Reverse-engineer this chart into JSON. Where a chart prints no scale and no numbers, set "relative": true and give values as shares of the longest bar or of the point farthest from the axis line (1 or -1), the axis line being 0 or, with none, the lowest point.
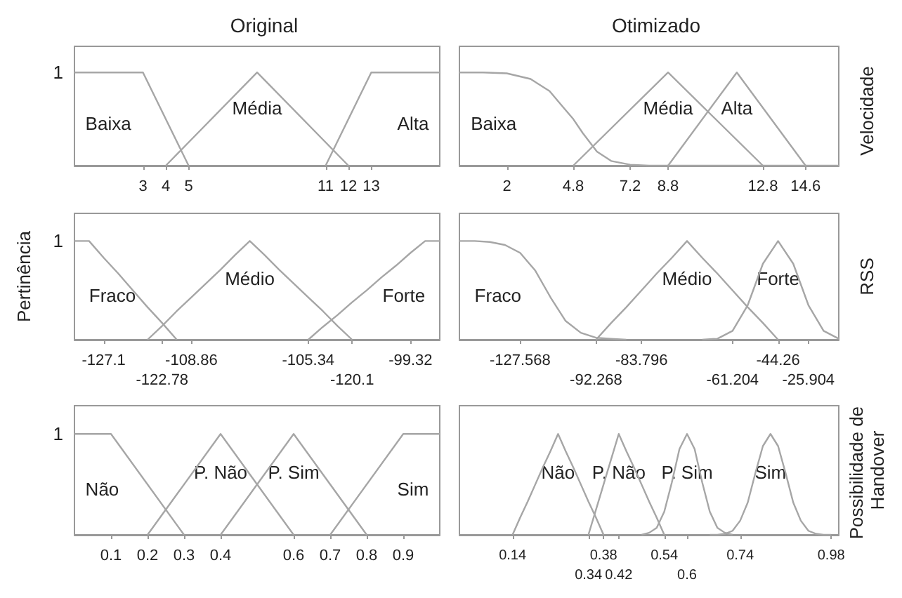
{
  "chart_data": [
    {
      "type": "line",
      "title": "Original",
      "relative": true,
      "annotations": [
        "1"
      ],
      "xlim": [
        0,
        16
      ],
      "xticks": [
        3,
        4,
        5,
        11,
        12,
        13
      ],
      "series": [
        {
          "name": "Baixa",
          "color": "#a6a6a6",
          "x": [
            0,
            3,
            5
          ],
          "values": [
            1,
            1,
            0
          ]
        },
        {
          "name": "Média",
          "color": "#a6a6a6",
          "x": [
            4,
            8,
            12
          ],
          "values": [
            0,
            1,
            0
          ]
        },
        {
          "name": "Alta",
          "color": "#a6a6a6",
          "x": [
            11,
            13,
            16
          ],
          "values": [
            0,
            1,
            1
          ]
        }
      ]
    },
    {
      "type": "line",
      "title": "Otimizado",
      "y2label": "Velocidade",
      "relative": true,
      "xlim": [
        0,
        16
      ],
      "xticks": [
        2,
        4.8,
        7.2,
        8.8,
        12.8,
        14.6
      ],
      "series": [
        {
          "name": "Baixa",
          "color": "#a6a6a6",
          "x": [
            0,
            1,
            2,
            3,
            3.8,
            4.4,
            4.8,
            5.2,
            5.8,
            6.4,
            7.2,
            8,
            16
          ],
          "values": [
            1,
            1,
            0.99,
            0.93,
            0.8,
            0.62,
            0.5,
            0.35,
            0.15,
            0.05,
            0.01,
            0,
            0
          ]
        },
        {
          "name": "Média",
          "color": "#a6a6a6",
          "x": [
            4.8,
            8.8,
            12.8
          ],
          "values": [
            0,
            1,
            0
          ]
        },
        {
          "name": "Alta",
          "color": "#a6a6a6",
          "x": [
            8.8,
            11.7,
            14.6
          ],
          "values": [
            0,
            1,
            0
          ]
        }
      ]
    },
    {
      "type": "line",
      "ylabel": "Pertinência",
      "relative": true,
      "annotations": [
        "1"
      ],
      "categories": [
        null,
        null,
        "-127.1",
        null,
        null,
        null,
        "-122.78",
        null,
        "-108.86",
        null,
        null,
        null,
        null,
        null,
        null,
        null,
        "-105.34",
        null,
        null,
        "-120.1",
        null,
        null,
        null,
        "-99.32",
        null,
        null
      ],
      "series": [
        {
          "name": "Fraco",
          "color": "#a6a6a6",
          "values": [
            1,
            1,
            0.83,
            0.67,
            0.5,
            0.33,
            0.17,
            0,
            null,
            null,
            null,
            null,
            null,
            null,
            null,
            null,
            null,
            null,
            null,
            null,
            null,
            null,
            null,
            null,
            null,
            null
          ]
        },
        {
          "name": "Médio",
          "color": "#a6a6a6",
          "values": [
            null,
            null,
            null,
            null,
            null,
            0,
            0.14,
            0.29,
            0.43,
            0.57,
            0.71,
            0.86,
            1,
            0.86,
            0.71,
            0.57,
            0.43,
            0.29,
            0.14,
            0,
            null,
            null,
            null,
            null,
            null,
            null
          ]
        },
        {
          "name": "Forte",
          "color": "#a6a6a6",
          "values": [
            null,
            null,
            null,
            null,
            null,
            null,
            null,
            null,
            null,
            null,
            null,
            null,
            null,
            null,
            null,
            null,
            0,
            0.13,
            0.25,
            0.38,
            0.5,
            0.63,
            0.75,
            0.88,
            1,
            1
          ]
        }
      ]
    },
    {
      "type": "line",
      "y2label": "RSS",
      "relative": true,
      "categories": [
        null,
        null,
        null,
        null,
        "-127.568",
        null,
        null,
        null,
        null,
        "-92.268",
        null,
        null,
        "-83.796",
        null,
        null,
        null,
        null,
        null,
        "-61.204",
        null,
        null,
        "-44.26",
        null,
        "-25.904",
        null,
        null
      ],
      "series": [
        {
          "name": "Fraco",
          "color": "#a6a6a6",
          "values": [
            1,
            1,
            0.99,
            0.96,
            0.88,
            0.7,
            0.43,
            0.19,
            0.07,
            0.02,
            0.01,
            0,
            null,
            null,
            null,
            null,
            null,
            null,
            null,
            null,
            null,
            null,
            null,
            null,
            null,
            null
          ]
        },
        {
          "name": "Médio",
          "color": "#a6a6a6",
          "values": [
            null,
            null,
            null,
            null,
            null,
            null,
            null,
            null,
            null,
            0,
            0.17,
            0.33,
            0.5,
            0.67,
            0.83,
            1,
            0.83,
            0.67,
            0.5,
            0.33,
            0.17,
            0,
            null,
            null,
            null,
            null
          ]
        },
        {
          "name": "Forte",
          "color": "#a6a6a6",
          "values": [
            null,
            null,
            null,
            null,
            null,
            null,
            null,
            null,
            null,
            null,
            null,
            null,
            null,
            null,
            null,
            null,
            0,
            0.01,
            0.09,
            0.35,
            0.77,
            1,
            0.77,
            0.35,
            0.09,
            0.01
          ]
        }
      ]
    },
    {
      "type": "line",
      "relative": true,
      "annotations": [
        "1"
      ],
      "xlim": [
        0,
        1
      ],
      "xticks": [
        0.1,
        0.2,
        0.3,
        0.4,
        0.6,
        0.7,
        0.8,
        0.9
      ],
      "series": [
        {
          "name": "Não",
          "color": "#a6a6a6",
          "x": [
            0,
            0.1,
            0.3
          ],
          "values": [
            1,
            1,
            0
          ]
        },
        {
          "name": "P. Não",
          "color": "#a6a6a6",
          "x": [
            0.2,
            0.4,
            0.6
          ],
          "values": [
            0,
            1,
            0
          ]
        },
        {
          "name": "P. Sim",
          "color": "#a6a6a6",
          "x": [
            0.4,
            0.6,
            0.8
          ],
          "values": [
            0,
            1,
            0
          ]
        },
        {
          "name": "Sim",
          "color": "#a6a6a6",
          "x": [
            0.7,
            0.9,
            1
          ],
          "values": [
            0,
            1,
            1
          ]
        }
      ]
    },
    {
      "type": "line",
      "y2label": "Possibilidade de Handover",
      "relative": true,
      "categories": [
        null,
        null,
        null,
        null,
        null,
        null,
        null,
        "0.14",
        null,
        null,
        null,
        null,
        null,
        null,
        null,
        null,
        null,
        "0.34",
        null,
        "0.38",
        null,
        "0.42",
        null,
        null,
        null,
        null,
        null,
        "0.54",
        null,
        null,
        "0.6",
        null,
        null,
        null,
        null,
        null,
        null,
        "0.74",
        null,
        null,
        null,
        null,
        null,
        null,
        null,
        null,
        null,
        null,
        null,
        "0.98",
        null
      ],
      "series": [
        {
          "name": "Não",
          "color": "#a6a6a6",
          "values": [
            null,
            null,
            null,
            null,
            null,
            null,
            null,
            0,
            0.17,
            0.33,
            0.5,
            0.67,
            0.83,
            1,
            0.83,
            0.67,
            0.5,
            0.33,
            0.17,
            0,
            null,
            null,
            null,
            null,
            null,
            null,
            null,
            null,
            null,
            null,
            null,
            null,
            null,
            null,
            null,
            null,
            null,
            null,
            null,
            null,
            null,
            null,
            null,
            null,
            null,
            null,
            null,
            null,
            null,
            null,
            null
          ]
        },
        {
          "name": "P. Não",
          "color": "#a6a6a6",
          "values": [
            null,
            null,
            null,
            null,
            null,
            null,
            null,
            null,
            null,
            null,
            null,
            null,
            null,
            null,
            null,
            null,
            null,
            0,
            0.25,
            0.5,
            0.75,
            1,
            0.83,
            0.67,
            0.5,
            0.33,
            0.17,
            0,
            null,
            null,
            null,
            null,
            null,
            null,
            null,
            null,
            null,
            null,
            null,
            null,
            null,
            null,
            null,
            null,
            null,
            null,
            null,
            null,
            null,
            null,
            null
          ]
        },
        {
          "name": "P. Sim",
          "color": "#a6a6a6",
          "values": [
            null,
            null,
            null,
            null,
            null,
            null,
            null,
            null,
            null,
            null,
            null,
            null,
            null,
            null,
            null,
            null,
            null,
            null,
            null,
            null,
            null,
            null,
            null,
            null,
            0,
            0.02,
            0.07,
            0.23,
            0.52,
            0.85,
            1,
            0.85,
            0.52,
            0.23,
            0.07,
            0.02,
            0,
            null,
            null,
            null,
            null,
            null,
            null,
            null,
            null,
            null,
            null,
            null,
            null,
            null,
            null
          ]
        },
        {
          "name": "Sim",
          "color": "#a6a6a6",
          "values": [
            null,
            null,
            null,
            null,
            null,
            null,
            null,
            null,
            null,
            null,
            null,
            null,
            null,
            null,
            null,
            null,
            null,
            null,
            null,
            null,
            null,
            null,
            null,
            null,
            null,
            null,
            null,
            null,
            null,
            null,
            null,
            null,
            null,
            0,
            0,
            0.01,
            0.04,
            0.14,
            0.32,
            0.61,
            0.88,
            1,
            0.88,
            0.61,
            0.32,
            0.14,
            0.04,
            0.01,
            0,
            0,
            null
          ]
        }
      ]
    }
  ]
}
